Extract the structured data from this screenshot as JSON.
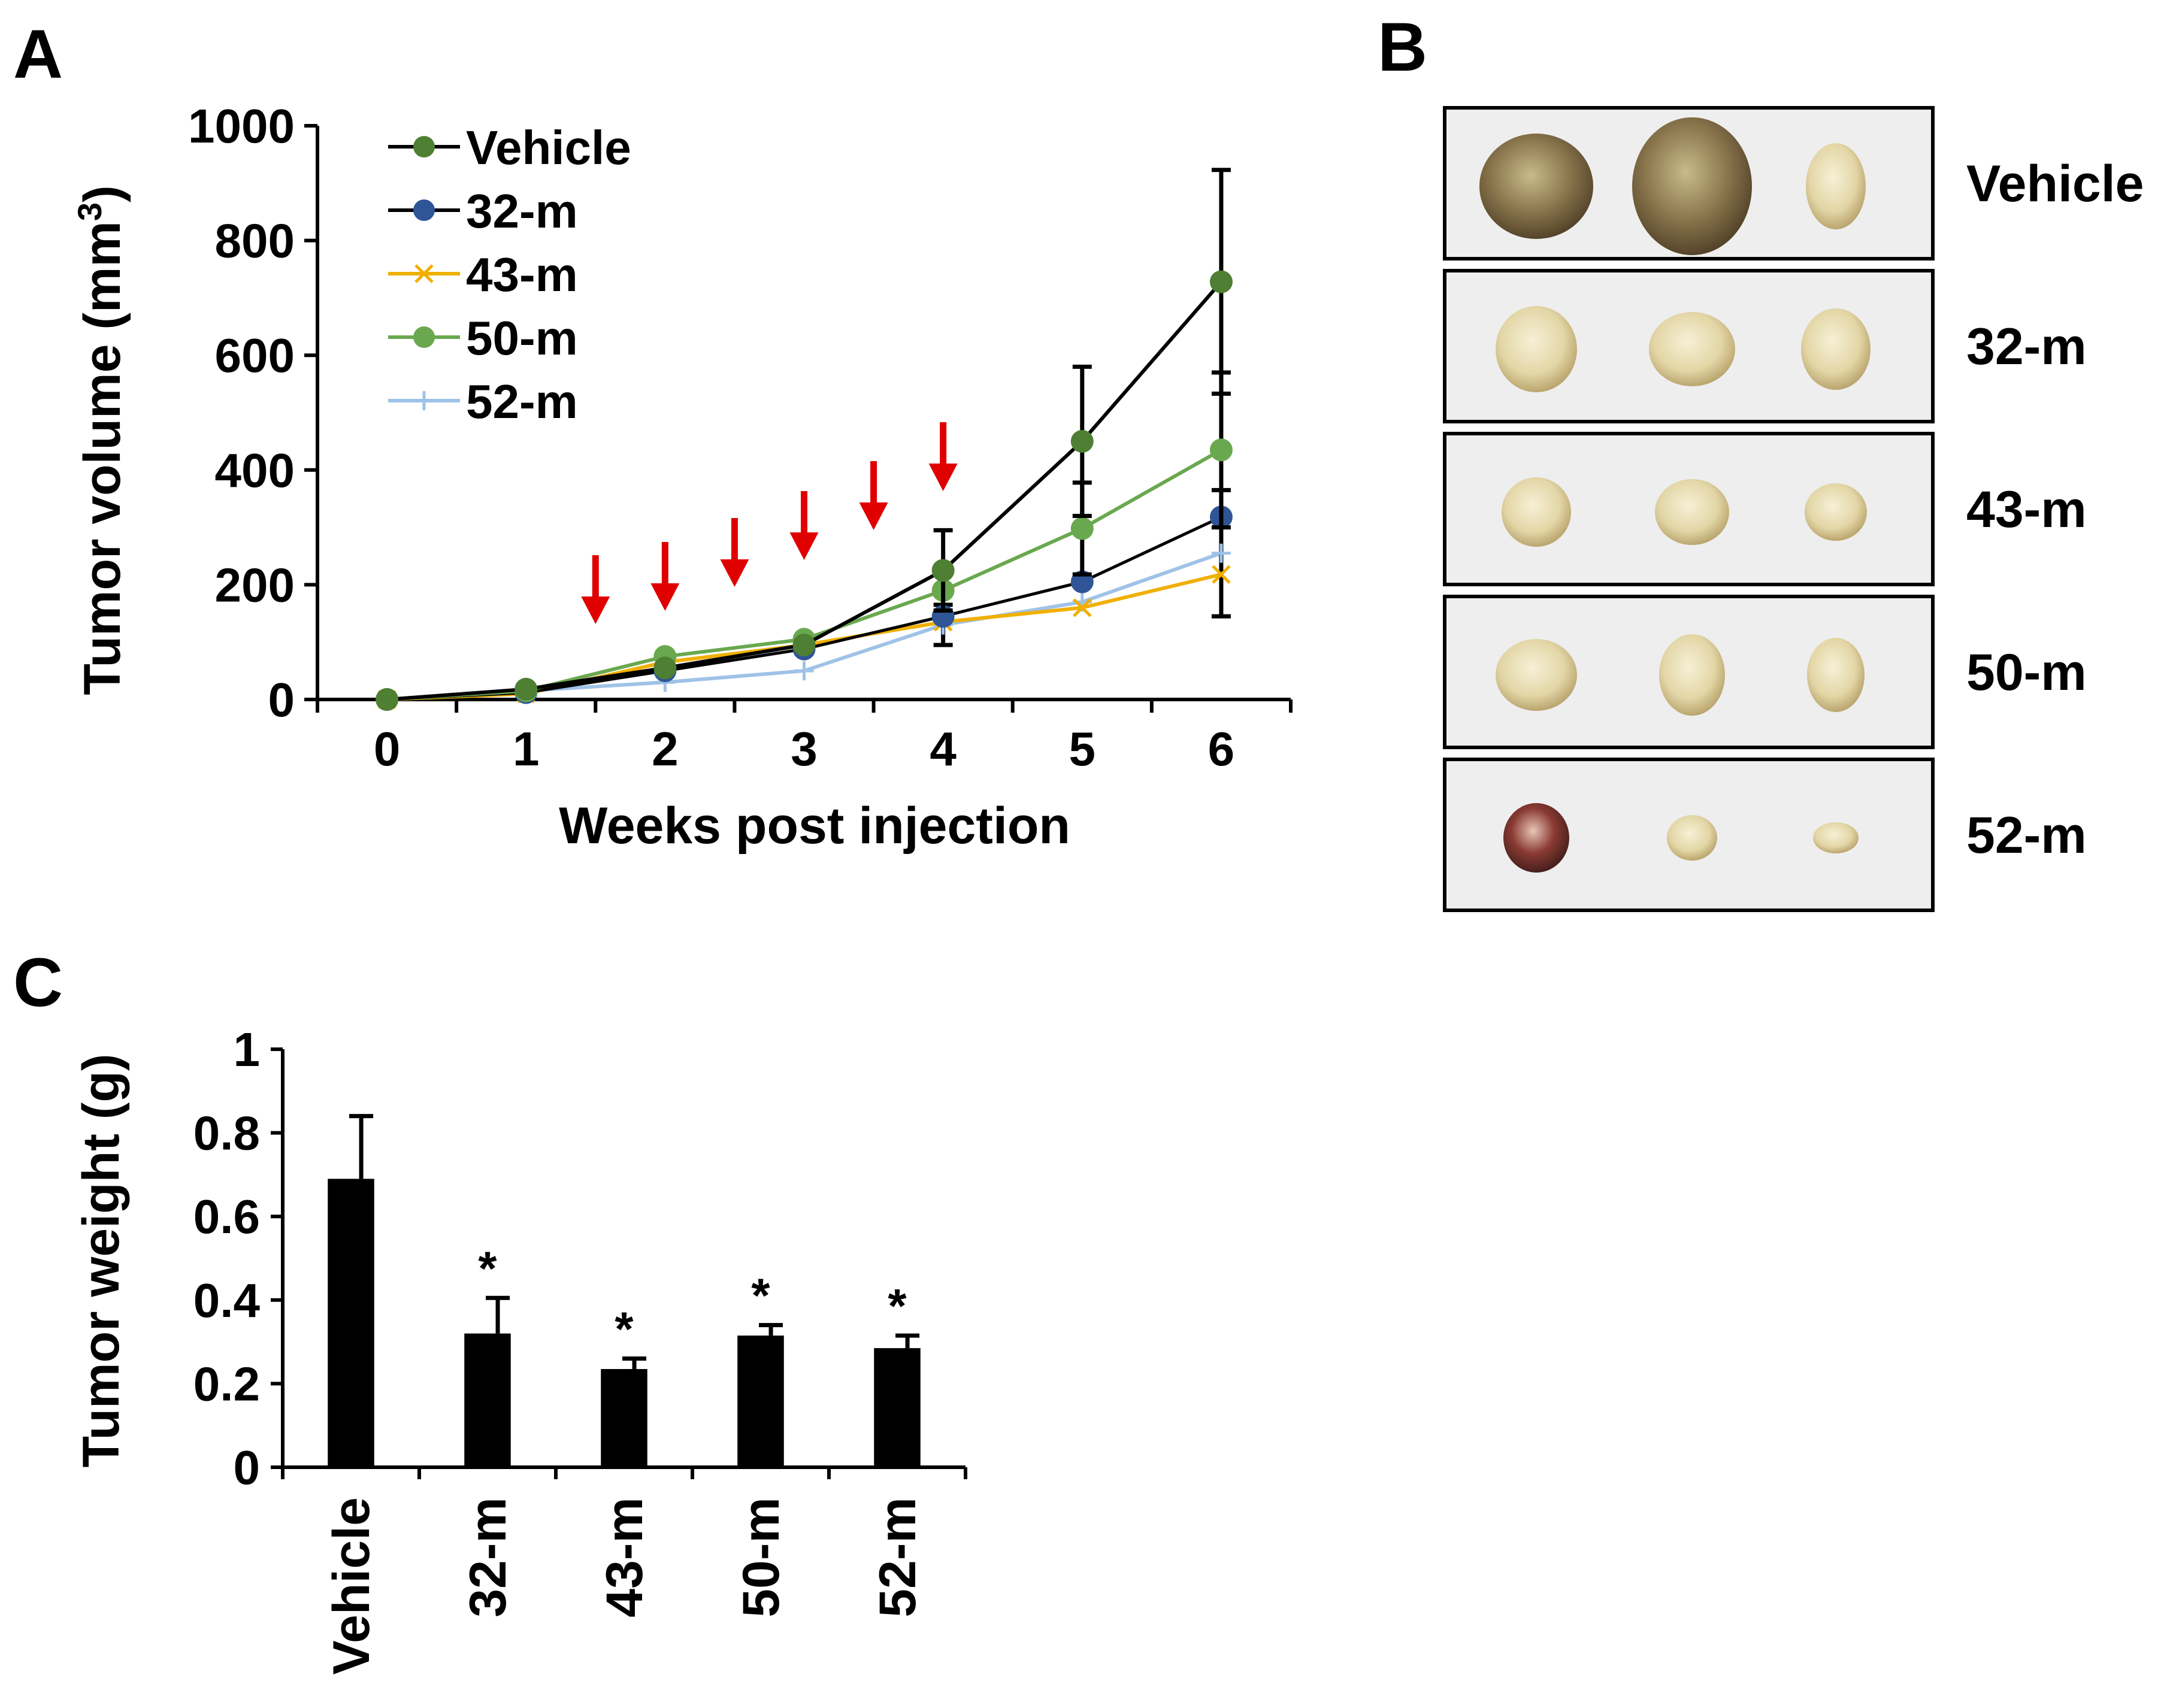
{
  "panels": {
    "A": "A",
    "B": "B",
    "C": "C"
  },
  "colors": {
    "vehicle_line": "#000000",
    "vehicle_marker": "#4e7f33",
    "m32": "#2f5597",
    "m43": "#f0b000",
    "m50": "#6aa84f",
    "m52": "#9fc2e7",
    "arrow": "#e00000",
    "bar": "#000000"
  },
  "chart_data": [
    {
      "type": "line",
      "panel": "A",
      "title": "",
      "xlabel": "Weeks post injection",
      "ylabel": "Tumor volume (mm",
      "ylabel_sup": "3",
      "ylabel_end": ")",
      "x": [
        0,
        1,
        2,
        3,
        4,
        5,
        6
      ],
      "xlim": [
        -0.5,
        6.5
      ],
      "ylim": [
        0,
        1000
      ],
      "yticks": [
        0,
        200,
        400,
        600,
        800,
        1000
      ],
      "legend_position": "top-left",
      "series": [
        {
          "name": "Vehicle",
          "marker": "circle",
          "values": [
            0,
            18,
            55,
            95,
            225,
            450,
            728
          ],
          "errors": [
            0,
            0,
            0,
            0,
            70,
            130,
            195
          ]
        },
        {
          "name": "32-m",
          "marker": "circle",
          "values": [
            0,
            12,
            50,
            88,
            145,
            205,
            318
          ],
          "errors": [
            0,
            0,
            0,
            0,
            0,
            0,
            0
          ]
        },
        {
          "name": "43-m",
          "marker": "x",
          "values": [
            0,
            10,
            65,
            95,
            135,
            160,
            218
          ],
          "errors": [
            0,
            0,
            0,
            0,
            0,
            0,
            0
          ]
        },
        {
          "name": "50-m",
          "marker": "circle",
          "values": [
            0,
            15,
            75,
            105,
            190,
            298,
            435
          ],
          "errors": [
            0,
            0,
            0,
            0,
            0,
            80,
            135
          ]
        },
        {
          "name": "52-m",
          "marker": "plus",
          "values": [
            0,
            15,
            30,
            50,
            130,
            170,
            255
          ],
          "errors": [
            0,
            0,
            0,
            0,
            35,
            0,
            110
          ]
        }
      ],
      "treatment_arrows_x": [
        1.5,
        2,
        2.5,
        3,
        3.5,
        4
      ]
    },
    {
      "type": "bar",
      "panel": "C",
      "title": "",
      "xlabel": "",
      "ylabel": "Tumor weight (g)",
      "categories": [
        "Vehicle",
        "32-m",
        "43-m",
        "50-m",
        "52-m"
      ],
      "values": [
        0.69,
        0.32,
        0.235,
        0.315,
        0.285
      ],
      "errors": [
        0.15,
        0.085,
        0.025,
        0.025,
        0.03
      ],
      "significance": [
        "",
        "*",
        "*",
        "*",
        "*"
      ],
      "ylim": [
        0,
        1
      ],
      "yticks": [
        0,
        0.2,
        0.4,
        0.6,
        0.8,
        1
      ],
      "ytick_labels": [
        "0",
        "0.2",
        "0.4",
        "0.6",
        "0.8",
        "1"
      ]
    }
  ],
  "panel_b": {
    "rows": [
      "Vehicle",
      "32-m",
      "43-m",
      "50-m",
      "52-m"
    ],
    "tumors_per_row": 3
  }
}
